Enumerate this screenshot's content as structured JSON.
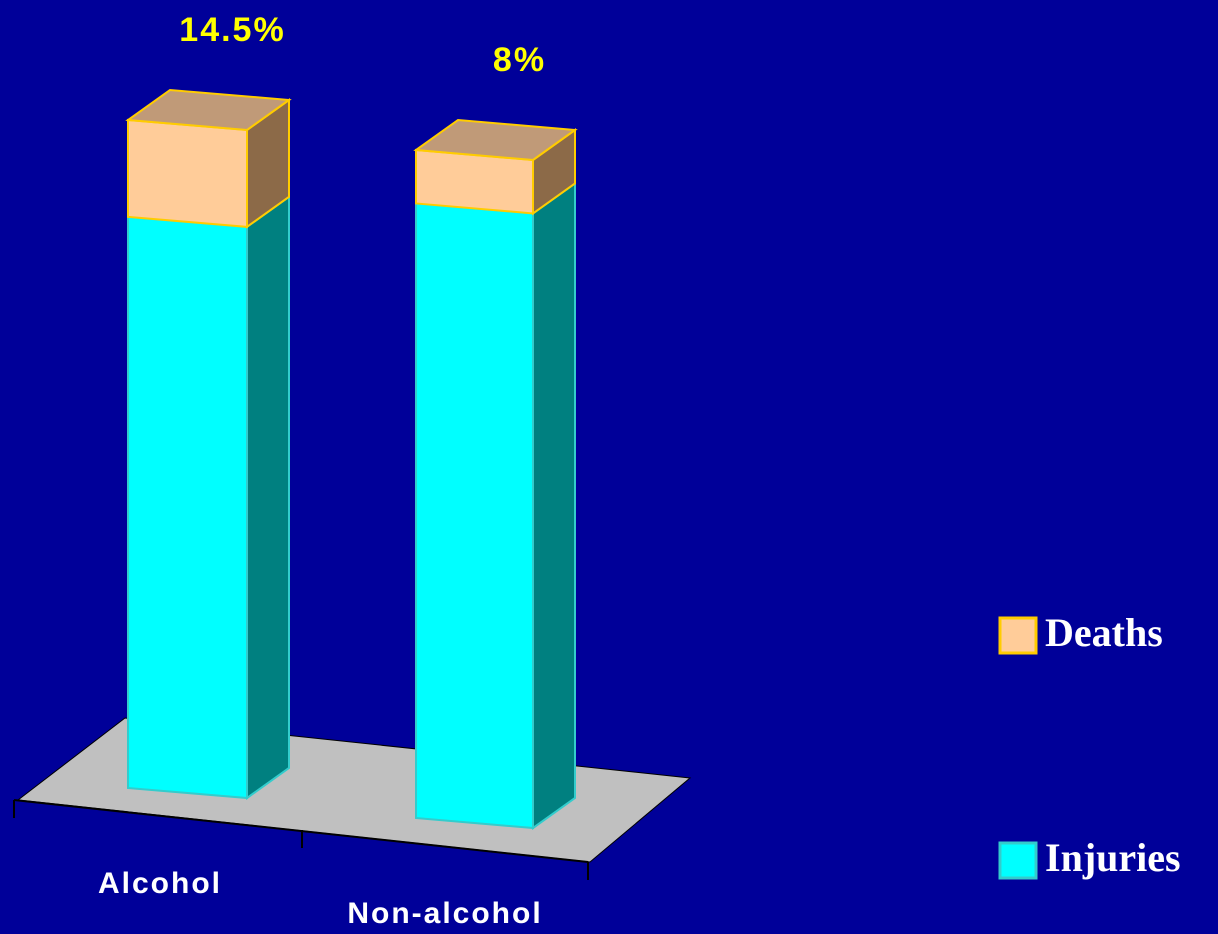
{
  "chart_data": {
    "type": "bar3d_stacked",
    "categories": [
      "Alcohol",
      "Non-alcohol"
    ],
    "series": [
      {
        "name": "Injuries",
        "color": "#00ffff",
        "side": "#008080",
        "edge": "#33cccc",
        "values": [
          85.5,
          92
        ]
      },
      {
        "name": "Deaths",
        "color": "#ffcc99",
        "side": "#8c6a48",
        "top": "#c09a78",
        "edge": "#ffcc00",
        "values": [
          14.5,
          8
        ],
        "value_labels": [
          "14.5%",
          "8%"
        ]
      }
    ],
    "ylim": [
      0,
      100
    ]
  }
}
